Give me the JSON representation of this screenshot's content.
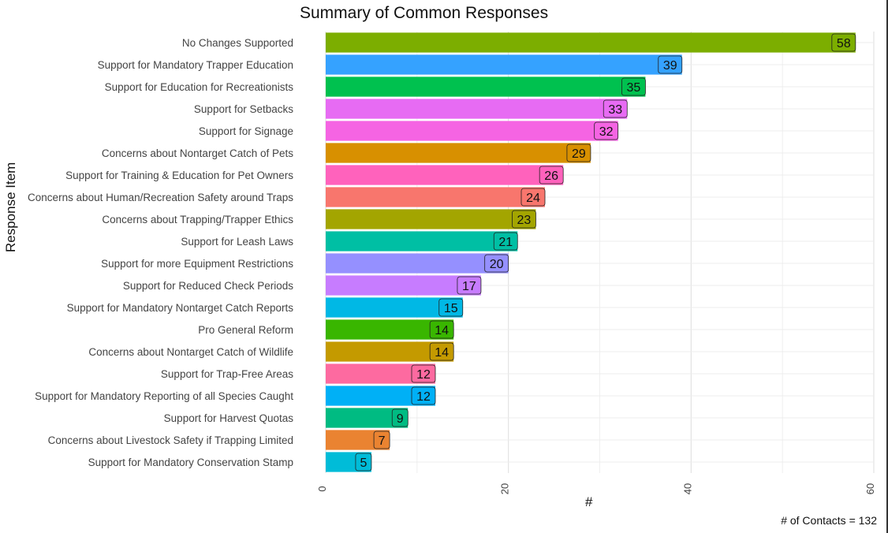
{
  "chart_data": {
    "type": "bar",
    "orientation": "horizontal",
    "title": "Summary of Common Responses",
    "xlabel": "#",
    "ylabel": "Response Item",
    "caption": "# of Contacts = 132",
    "xlim": [
      0,
      60
    ],
    "x_ticks": [
      0,
      20,
      40,
      60
    ],
    "grid": true,
    "categories": [
      "No Changes Supported",
      "Support for Mandatory Trapper Education",
      "Support for Education for Recreationists",
      "Support for Setbacks",
      "Support for Signage",
      "Concerns about Nontarget Catch of Pets",
      "Support for Training & Education for Pet Owners",
      "Concerns about Human/Recreation Safety around Traps",
      "Concerns about Trapping/Trapper Ethics",
      "Support for Leash Laws",
      "Support for more Equipment Restrictions",
      "Support for Reduced Check Periods",
      "Support for Mandatory Nontarget Catch Reports",
      "Pro General Reform",
      "Concerns about Nontarget Catch of Wildlife",
      "Support for Trap-Free Areas",
      "Support for Mandatory Reporting of all Species Caught",
      "Support for Harvest Quotas",
      "Concerns about Livestock Safety if Trapping Limited",
      "Support for Mandatory Conservation Stamp"
    ],
    "values": [
      58,
      39,
      35,
      33,
      32,
      29,
      26,
      24,
      23,
      21,
      20,
      17,
      15,
      14,
      14,
      12,
      12,
      9,
      7,
      5
    ],
    "colors": [
      "#7cae00",
      "#35a2ff",
      "#00c14f",
      "#e76bf3",
      "#f564e3",
      "#d89000",
      "#ff62bc",
      "#f8766d",
      "#a3a500",
      "#00bfa4",
      "#9590ff",
      "#c77cff",
      "#00b8e5",
      "#39b600",
      "#c49a00",
      "#fd6aa0",
      "#00b0f6",
      "#00bb82",
      "#ea8331",
      "#00bcd8"
    ]
  }
}
